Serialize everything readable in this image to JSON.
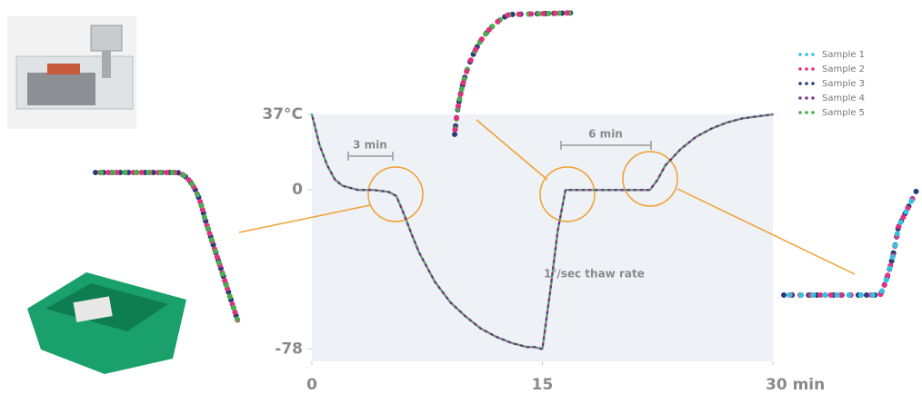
{
  "chart_data": {
    "type": "line",
    "x": [
      0,
      0.5,
      1,
      1.5,
      2,
      3,
      4,
      5,
      5.5,
      6,
      6.5,
      7,
      8,
      9,
      10,
      11,
      12,
      13,
      14,
      14.5,
      15,
      15.5,
      16,
      16.5,
      17,
      18,
      19,
      20,
      21,
      22,
      22.5,
      23,
      24,
      25,
      26,
      27,
      28,
      29,
      30
    ],
    "series": [
      {
        "name": "Sample 1",
        "color": "#35c1e3",
        "values": [
          37,
          22,
          12,
          5,
          2,
          0,
          0,
          -1,
          -3,
          -12,
          -22,
          -31,
          -45,
          -55,
          -62,
          -68,
          -72,
          -75,
          -77,
          -77,
          -78,
          -50,
          -20,
          0,
          0,
          0,
          0,
          0,
          0,
          0,
          5,
          12,
          20,
          26,
          30,
          33,
          35,
          36,
          37
        ]
      },
      {
        "name": "Sample 2",
        "color": "#e2307c",
        "values": [
          37,
          22,
          12,
          5,
          2,
          0,
          0,
          -1,
          -3,
          -12,
          -22,
          -31,
          -45,
          -55,
          -62,
          -68,
          -72,
          -75,
          -77,
          -77,
          -78,
          -50,
          -20,
          0,
          0,
          0,
          0,
          0,
          0,
          0,
          5,
          12,
          20,
          26,
          30,
          33,
          35,
          36,
          37
        ]
      },
      {
        "name": "Sample 3",
        "color": "#283c78",
        "values": [
          37,
          22,
          12,
          5,
          2,
          0,
          0,
          -1,
          -3,
          -12,
          -22,
          -31,
          -45,
          -55,
          -62,
          -68,
          -72,
          -75,
          -77,
          -77,
          -78,
          -50,
          -20,
          0,
          0,
          0,
          0,
          0,
          0,
          0,
          5,
          12,
          20,
          26,
          30,
          33,
          35,
          36,
          37
        ]
      },
      {
        "name": "Sample 4",
        "color": "#7d3f91",
        "values": [
          37,
          22,
          12,
          5,
          2,
          0,
          0,
          -1,
          -3,
          -12,
          -22,
          -31,
          -45,
          -55,
          -62,
          -68,
          -72,
          -75,
          -77,
          -77,
          -78,
          -50,
          -20,
          0,
          0,
          0,
          0,
          0,
          0,
          0,
          5,
          12,
          20,
          26,
          30,
          33,
          35,
          36,
          37
        ]
      },
      {
        "name": "Sample 5",
        "color": "#4cad4f",
        "values": [
          37,
          22,
          12,
          5,
          2,
          0,
          0,
          -1,
          -3,
          -12,
          -22,
          -31,
          -45,
          -55,
          -62,
          -68,
          -72,
          -75,
          -77,
          -77,
          -78,
          -50,
          -20,
          0,
          0,
          0,
          0,
          0,
          0,
          0,
          5,
          12,
          20,
          26,
          30,
          33,
          35,
          36,
          37
        ]
      }
    ],
    "xlim": [
      0,
      30
    ],
    "xticks": [
      0,
      15,
      {
        "value": 30,
        "label": "30 min"
      }
    ],
    "ylim": [
      -84,
      37
    ],
    "yticks": [
      -78,
      0,
      {
        "value": 37,
        "label": "37°C"
      }
    ],
    "annotations": [
      "3 min",
      "6 min",
      "1°/sec thaw rate"
    ],
    "legend": "top-right"
  }
}
